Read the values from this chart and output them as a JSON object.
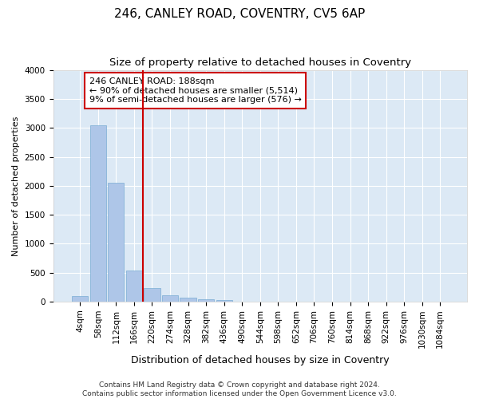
{
  "title": "246, CANLEY ROAD, COVENTRY, CV5 6AP",
  "subtitle": "Size of property relative to detached houses in Coventry",
  "xlabel": "Distribution of detached houses by size in Coventry",
  "ylabel": "Number of detached properties",
  "footer_line1": "Contains HM Land Registry data © Crown copyright and database right 2024.",
  "footer_line2": "Contains public sector information licensed under the Open Government Licence v3.0.",
  "bar_labels": [
    "4sqm",
    "58sqm",
    "112sqm",
    "166sqm",
    "220sqm",
    "274sqm",
    "328sqm",
    "382sqm",
    "436sqm",
    "490sqm",
    "544sqm",
    "598sqm",
    "652sqm",
    "706sqm",
    "760sqm",
    "814sqm",
    "868sqm",
    "922sqm",
    "976sqm",
    "1030sqm",
    "1084sqm"
  ],
  "bar_values": [
    100,
    3050,
    2050,
    530,
    230,
    105,
    65,
    35,
    25,
    0,
    0,
    0,
    0,
    0,
    0,
    0,
    0,
    0,
    0,
    0,
    0
  ],
  "bar_color": "#aec6e8",
  "bar_edge_color": "#7aadd4",
  "background_color": "#dce9f5",
  "grid_color": "#ffffff",
  "red_line_x": 3.5,
  "annotation_text": "246 CANLEY ROAD: 188sqm\n← 90% of detached houses are smaller (5,514)\n9% of semi-detached houses are larger (576) →",
  "annotation_box_color": "#ffffff",
  "annotation_box_edge_color": "#cc0000",
  "ylim": [
    0,
    4000
  ],
  "yticks": [
    0,
    500,
    1000,
    1500,
    2000,
    2500,
    3000,
    3500,
    4000
  ],
  "title_fontsize": 11,
  "subtitle_fontsize": 9.5,
  "annotation_fontsize": 8,
  "xlabel_fontsize": 9,
  "ylabel_fontsize": 8,
  "footer_fontsize": 6.5,
  "tick_fontsize": 7.5
}
